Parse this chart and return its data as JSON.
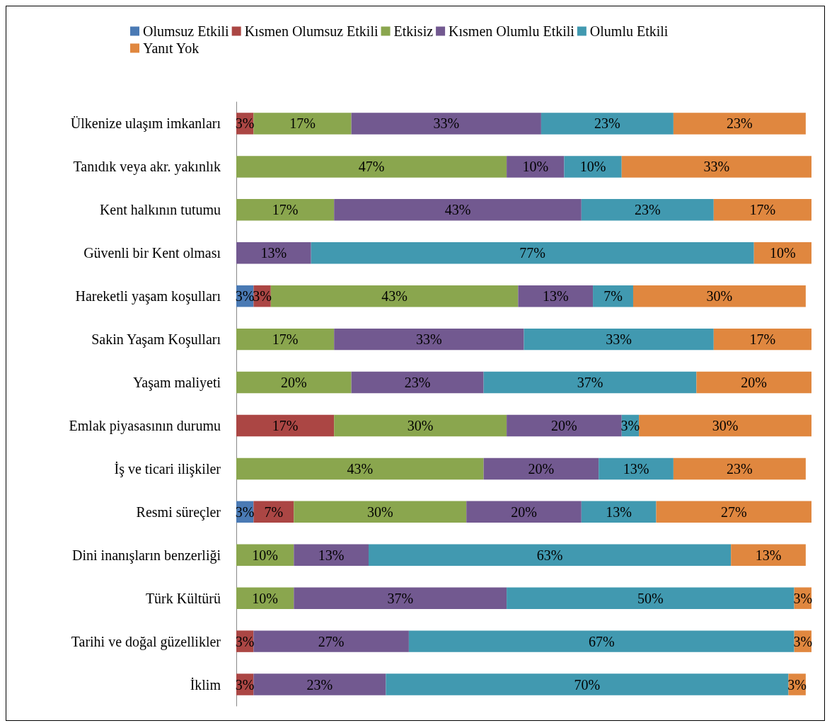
{
  "chart_data": {
    "type": "bar",
    "orientation": "horizontal",
    "stacked": true,
    "legend": "top",
    "categories": [
      "Ülkenize ulaşım imkanları",
      "Tanıdık veya akr. yakınlık",
      "Kent halkının tutumu",
      "Güvenli bir Kent olması",
      "Hareketli yaşam koşulları",
      "Sakin Yaşam Koşulları",
      "Yaşam maliyeti",
      "Emlak piyasasının durumu",
      "İş ve ticari ilişkiler",
      "Resmi süreçler",
      "Dini inanışların benzerliği",
      "Türk Kültürü",
      "Tarihi ve doğal güzellikler",
      "İklim"
    ],
    "series": [
      {
        "name": "Olumsuz Etkili",
        "color": "#4a7ab4",
        "values": [
          null,
          null,
          null,
          null,
          3,
          null,
          null,
          null,
          null,
          3,
          null,
          null,
          null,
          null
        ],
        "value_labels": [
          null,
          null,
          null,
          null,
          "3%",
          null,
          null,
          null,
          null,
          "3%",
          null,
          null,
          null,
          null
        ]
      },
      {
        "name": "Kısmen Olumsuz Etkili",
        "color": "#ab4644",
        "values": [
          3,
          null,
          null,
          null,
          3,
          null,
          null,
          17,
          null,
          7,
          null,
          null,
          3,
          3
        ],
        "value_labels": [
          "3%",
          null,
          null,
          null,
          "3%",
          null,
          null,
          "17%",
          null,
          "7%",
          null,
          null,
          "3%",
          "3%"
        ]
      },
      {
        "name": "Etkisiz",
        "color": "#8aa64e",
        "values": [
          17,
          47,
          17,
          null,
          43,
          17,
          20,
          30,
          43,
          30,
          10,
          10,
          null,
          null
        ],
        "value_labels": [
          "17%",
          "47%",
          "17%",
          null,
          "43%",
          "17%",
          "20%",
          "30%",
          "43%",
          "30%",
          "10%",
          "10%",
          null,
          null
        ]
      },
      {
        "name": "Kısmen Olumlu Etkili",
        "color": "#725990",
        "values": [
          33,
          10,
          43,
          13,
          13,
          33,
          23,
          20,
          20,
          20,
          13,
          37,
          27,
          23
        ],
        "value_labels": [
          "33%",
          "10%",
          "43%",
          "13%",
          "13%",
          "33%",
          "23%",
          "20%",
          "20%",
          "20%",
          "13%",
          "37%",
          "27%",
          "23%"
        ]
      },
      {
        "name": "Olumlu Etkili",
        "color": "#4199b0",
        "values": [
          23,
          10,
          23,
          77,
          7,
          33,
          37,
          3,
          13,
          13,
          63,
          50,
          67,
          70
        ],
        "value_labels": [
          "23%",
          "10%",
          "23%",
          "77%",
          "7%",
          "33%",
          "37%",
          "3%",
          "13%",
          "13%",
          "63%",
          "50%",
          "67%",
          "70%"
        ]
      },
      {
        "name": "Yanıt Yok",
        "color": "#e0873f",
        "values": [
          23,
          33,
          17,
          10,
          30,
          17,
          20,
          30,
          23,
          27,
          13,
          3,
          3,
          3
        ],
        "value_labels": [
          "23%",
          "33%",
          "17%",
          "10%",
          "30%",
          "17%",
          "20%",
          "30%",
          "23%",
          "27%",
          "13%",
          "3%",
          "3%",
          "3%"
        ]
      }
    ]
  }
}
